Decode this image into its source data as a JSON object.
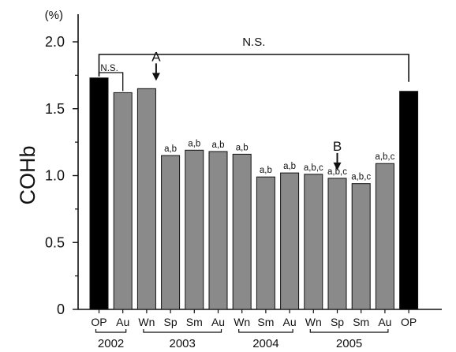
{
  "chart_data": {
    "type": "bar",
    "ylabel": "COHb",
    "yunit": "(%)",
    "ylim": [
      0,
      2.0
    ],
    "yticks": [
      "0",
      "0.5",
      "1.0",
      "1.5",
      "2.0"
    ],
    "grid": false,
    "categories": [
      "OP",
      "Au",
      "Wn",
      "Sp",
      "Sm",
      "Au",
      "Wn",
      "Sm",
      "Au",
      "Wn",
      "Sp",
      "Sm",
      "Au",
      "OP"
    ],
    "values": [
      1.73,
      1.62,
      1.65,
      1.15,
      1.19,
      1.18,
      1.16,
      0.99,
      1.02,
      1.01,
      0.98,
      0.94,
      1.09,
      1.63
    ],
    "bar_colors": [
      "#000000",
      "#8a8a8a",
      "#8a8a8a",
      "#8a8a8a",
      "#8a8a8a",
      "#8a8a8a",
      "#8a8a8a",
      "#8a8a8a",
      "#8a8a8a",
      "#8a8a8a",
      "#8a8a8a",
      "#8a8a8a",
      "#8a8a8a",
      "#000000"
    ],
    "significance_labels": [
      "",
      "",
      "",
      "a,b",
      "a,b",
      "a,b",
      "a,b",
      "a,b",
      "a,b",
      "a,b,c",
      "a,b,c",
      "a,b,c",
      "a,b,c",
      ""
    ],
    "year_groups": [
      {
        "label": "2002",
        "from": 0,
        "to": 1
      },
      {
        "label": "2003",
        "from": 2,
        "to": 5
      },
      {
        "label": "2004",
        "from": 6,
        "to": 8
      },
      {
        "label": "2005",
        "from": 9,
        "to": 12
      }
    ],
    "annotations": [
      {
        "label": "A",
        "at": 2,
        "y": 1.65
      },
      {
        "label": "B",
        "at": 10,
        "y": 0.98
      }
    ],
    "brackets": [
      {
        "label": "N.S.",
        "from": 0,
        "to": 13
      },
      {
        "label": "N.S.",
        "from": 0,
        "to": 1
      }
    ]
  }
}
